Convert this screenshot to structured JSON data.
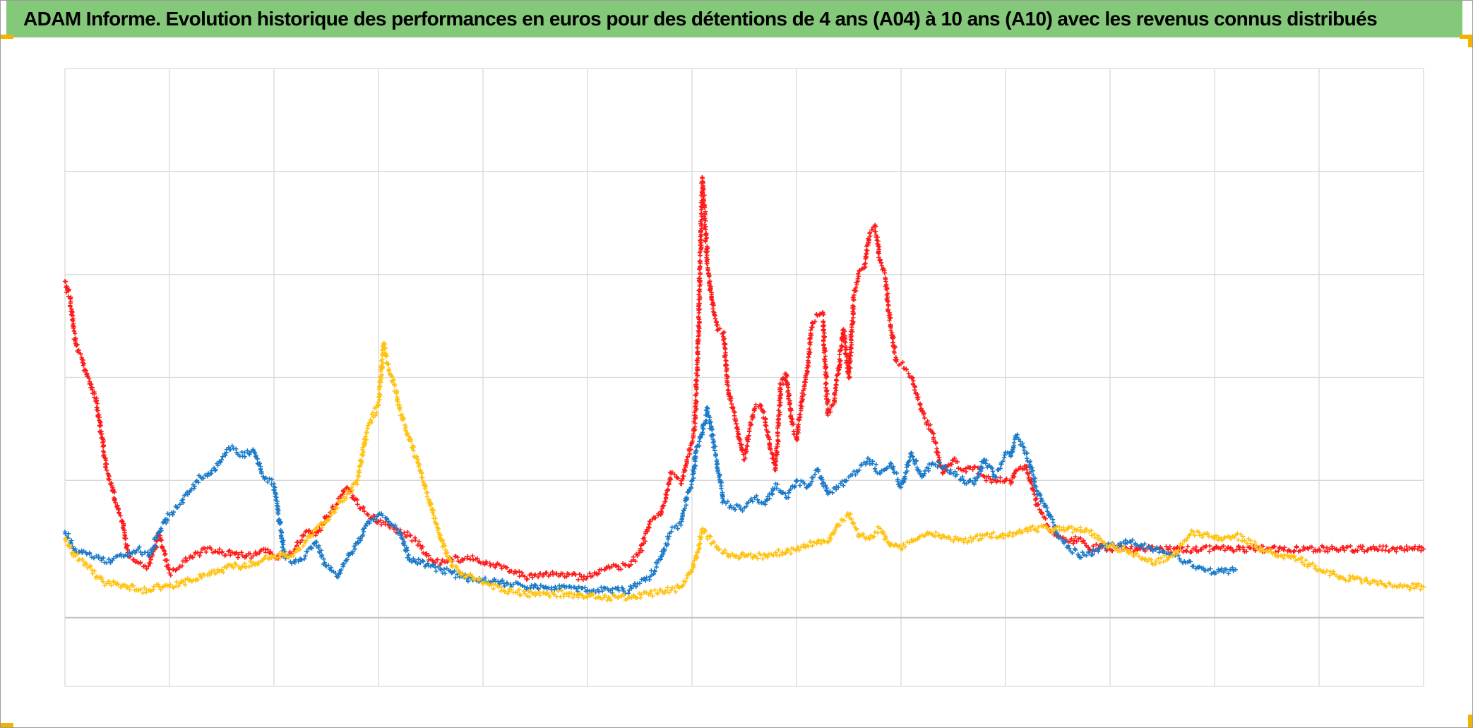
{
  "title": "ADAM Informe. Evolution historique des performances en euros pour des détentions de 4 ans (A04) à 10 ans (A10) avec les revenus connus distribués",
  "colors": {
    "title_bar": "#84c97a",
    "corner_marks": "#f2b400",
    "grid": "#d9d9d9",
    "series_red": "#ff1a1a",
    "series_blue": "#1a7ac8",
    "series_yellow": "#ffc20e"
  },
  "chart_data": {
    "type": "scatter",
    "marker": "plus",
    "title": "ADAM Informe. Evolution historique des performances en euros pour des détentions de 4 ans (A04) à 10 ans (A10) avec les revenus connus distribués",
    "xlabel": "",
    "ylabel": "",
    "xlim": [
      0,
      13
    ],
    "ylim": [
      -2,
      16
    ],
    "xticks": [
      0,
      1,
      2,
      3,
      4,
      5,
      6,
      7,
      8,
      9,
      10,
      11,
      12,
      13
    ],
    "yticks": [
      -2,
      0,
      4,
      7,
      10,
      13,
      16
    ],
    "tick_labels_shown": false,
    "grid": true,
    "legend": "none",
    "series": [
      {
        "color": "#ff1a1a",
        "x": [
          0.0,
          0.05,
          0.1,
          0.2,
          0.3,
          0.4,
          0.5,
          0.55,
          0.6,
          0.7,
          0.8,
          0.9,
          1.0,
          1.1,
          1.2,
          1.3,
          1.4,
          1.5,
          1.6,
          1.7,
          1.8,
          1.9,
          2.0,
          2.1,
          2.2,
          2.3,
          2.4,
          2.5,
          2.6,
          2.7,
          2.8,
          2.9,
          3.0,
          3.1,
          3.2,
          3.3,
          3.4,
          3.5,
          3.6,
          3.7,
          3.8,
          3.9,
          4.0,
          4.2,
          4.4,
          4.6,
          4.8,
          5.0,
          5.2,
          5.4,
          5.5,
          5.6,
          5.7,
          5.75,
          5.8,
          5.85,
          5.9,
          5.95,
          6.0,
          6.03,
          6.06,
          6.1,
          6.15,
          6.2,
          6.25,
          6.3,
          6.35,
          6.4,
          6.45,
          6.5,
          6.55,
          6.6,
          6.65,
          6.7,
          6.75,
          6.8,
          6.85,
          6.9,
          6.95,
          7.0,
          7.05,
          7.1,
          7.15,
          7.2,
          7.25,
          7.3,
          7.35,
          7.4,
          7.45,
          7.5,
          7.55,
          7.6,
          7.65,
          7.7,
          7.75,
          7.8,
          7.85,
          7.9,
          7.95,
          8.0,
          8.1,
          8.2,
          8.3,
          8.4,
          8.5,
          8.6,
          8.7,
          8.8,
          8.9,
          9.0,
          9.05,
          9.1,
          9.2,
          9.3,
          9.4,
          9.5,
          9.6,
          9.7,
          9.8,
          9.9,
          10.0,
          10.5,
          11.0,
          11.5,
          12.0,
          12.5,
          13.0
        ],
        "y": [
          9.8,
          9.3,
          8.0,
          7.2,
          6.3,
          4.3,
          3.2,
          2.8,
          1.9,
          1.6,
          1.5,
          2.4,
          1.3,
          1.5,
          1.8,
          1.9,
          2.0,
          1.9,
          1.9,
          1.8,
          1.8,
          2.0,
          1.8,
          1.8,
          2.0,
          2.5,
          2.4,
          2.9,
          3.3,
          3.8,
          3.3,
          3.0,
          2.8,
          2.7,
          2.5,
          2.4,
          2.1,
          1.7,
          1.6,
          1.7,
          1.7,
          1.8,
          1.6,
          1.5,
          1.2,
          1.3,
          1.2,
          1.2,
          1.5,
          1.5,
          1.9,
          2.8,
          3.0,
          3.5,
          4.2,
          4.1,
          3.9,
          4.6,
          5.1,
          5.8,
          8.2,
          12.8,
          10.2,
          9.0,
          8.4,
          8.3,
          6.5,
          6.0,
          5.2,
          4.6,
          5.5,
          6.1,
          6.2,
          5.8,
          4.9,
          4.3,
          6.8,
          7.1,
          5.8,
          5.2,
          6.3,
          7.1,
          8.6,
          8.8,
          8.9,
          5.9,
          6.2,
          7.2,
          8.4,
          7.0,
          9.4,
          10.1,
          10.2,
          11.2,
          11.4,
          10.4,
          9.9,
          8.5,
          7.5,
          7.4,
          7.0,
          6.0,
          5.4,
          4.2,
          4.6,
          4.3,
          4.4,
          4.1,
          4.0,
          4.0,
          3.9,
          4.3,
          4.4,
          3.3,
          2.7,
          2.4,
          2.2,
          2.3,
          2.0,
          2.1,
          2.0,
          2.0,
          2.0,
          2.0,
          2.0,
          2.0,
          2.0
        ]
      },
      {
        "color": "#1a7ac8",
        "x": [
          0.0,
          0.1,
          0.2,
          0.3,
          0.4,
          0.5,
          0.6,
          0.7,
          0.8,
          0.9,
          1.0,
          1.1,
          1.2,
          1.3,
          1.4,
          1.5,
          1.6,
          1.7,
          1.8,
          1.9,
          2.0,
          2.1,
          2.2,
          2.3,
          2.4,
          2.5,
          2.6,
          2.7,
          2.8,
          2.9,
          3.0,
          3.1,
          3.2,
          3.3,
          3.4,
          3.5,
          3.6,
          3.7,
          3.8,
          3.9,
          4.0,
          4.2,
          4.4,
          4.6,
          4.8,
          5.0,
          5.2,
          5.4,
          5.5,
          5.6,
          5.7,
          5.8,
          5.9,
          5.95,
          6.0,
          6.05,
          6.1,
          6.15,
          6.2,
          6.3,
          6.4,
          6.5,
          6.6,
          6.7,
          6.8,
          6.9,
          7.0,
          7.1,
          7.2,
          7.3,
          7.4,
          7.5,
          7.6,
          7.7,
          7.8,
          7.9,
          8.0,
          8.1,
          8.2,
          8.3,
          8.4,
          8.5,
          8.6,
          8.7,
          8.8,
          8.9,
          9.0,
          9.05,
          9.1,
          9.2,
          9.3,
          9.4,
          9.5,
          9.6,
          9.7,
          9.8,
          9.9,
          10.0,
          10.2,
          10.4,
          10.6,
          10.8,
          11.0,
          11.2
        ],
        "y": [
          2.5,
          2.0,
          1.9,
          1.8,
          1.6,
          1.8,
          1.8,
          2.0,
          1.8,
          2.5,
          3.0,
          3.3,
          3.7,
          4.1,
          4.2,
          4.6,
          5.0,
          4.7,
          4.9,
          4.1,
          3.9,
          1.8,
          1.6,
          1.8,
          2.2,
          1.5,
          1.2,
          1.7,
          2.2,
          2.8,
          3.0,
          2.8,
          2.5,
          1.7,
          1.6,
          1.5,
          1.4,
          1.3,
          1.2,
          1.1,
          1.1,
          1.0,
          0.9,
          0.9,
          0.9,
          0.8,
          0.8,
          0.8,
          1.0,
          1.2,
          1.7,
          2.5,
          2.8,
          3.5,
          4.0,
          5.0,
          5.4,
          6.1,
          5.2,
          3.4,
          3.2,
          3.2,
          3.5,
          3.3,
          3.9,
          3.5,
          4.0,
          3.8,
          4.3,
          3.6,
          3.8,
          4.1,
          4.3,
          4.6,
          4.2,
          4.5,
          3.8,
          4.8,
          4.1,
          4.5,
          4.4,
          4.2,
          4.0,
          3.9,
          4.6,
          4.1,
          4.8,
          4.7,
          5.3,
          4.8,
          3.7,
          3.1,
          2.4,
          2.1,
          1.8,
          1.9,
          2.0,
          2.1,
          2.2,
          2.0,
          1.8,
          1.5,
          1.3,
          1.4
        ]
      },
      {
        "color": "#ffc20e",
        "x": [
          0.0,
          0.1,
          0.2,
          0.3,
          0.4,
          0.5,
          0.6,
          0.7,
          0.8,
          0.9,
          1.0,
          1.1,
          1.2,
          1.3,
          1.4,
          1.5,
          1.6,
          1.7,
          1.8,
          1.9,
          2.0,
          2.1,
          2.2,
          2.3,
          2.4,
          2.5,
          2.6,
          2.7,
          2.8,
          2.9,
          3.0,
          3.05,
          3.1,
          3.15,
          3.2,
          3.3,
          3.4,
          3.5,
          3.6,
          3.7,
          3.8,
          3.9,
          4.0,
          4.2,
          4.4,
          4.6,
          4.8,
          5.0,
          5.2,
          5.4,
          5.6,
          5.8,
          5.9,
          6.0,
          6.05,
          6.1,
          6.2,
          6.3,
          6.4,
          6.5,
          6.6,
          6.7,
          6.8,
          6.9,
          7.0,
          7.1,
          7.2,
          7.3,
          7.4,
          7.5,
          7.6,
          7.7,
          7.8,
          7.9,
          8.0,
          8.2,
          8.4,
          8.6,
          8.8,
          9.0,
          9.2,
          9.4,
          9.6,
          9.8,
          10.0,
          10.2,
          10.4,
          10.6,
          10.8,
          11.0,
          11.2,
          11.4,
          11.6,
          11.8,
          12.0,
          12.2,
          12.4,
          12.6,
          12.8,
          13.0
        ],
        "y": [
          2.3,
          1.8,
          1.6,
          1.2,
          1.0,
          1.0,
          0.9,
          0.8,
          0.8,
          0.9,
          0.9,
          1.0,
          1.1,
          1.2,
          1.3,
          1.4,
          1.5,
          1.5,
          1.6,
          1.7,
          1.8,
          1.8,
          1.9,
          2.2,
          2.6,
          2.8,
          3.2,
          3.6,
          4.0,
          5.6,
          6.2,
          8.0,
          7.2,
          6.8,
          6.1,
          5.2,
          4.3,
          3.3,
          2.3,
          1.5,
          1.3,
          1.2,
          1.0,
          0.8,
          0.7,
          0.7,
          0.7,
          0.6,
          0.6,
          0.6,
          0.7,
          0.8,
          0.9,
          1.4,
          1.9,
          2.6,
          2.2,
          1.9,
          1.8,
          1.8,
          1.8,
          1.8,
          1.9,
          1.9,
          2.0,
          2.1,
          2.2,
          2.2,
          2.7,
          3.0,
          2.4,
          2.3,
          2.6,
          2.1,
          2.0,
          2.4,
          2.4,
          2.2,
          2.4,
          2.4,
          2.6,
          2.6,
          2.6,
          2.5,
          2.1,
          1.9,
          1.6,
          1.8,
          2.5,
          2.3,
          2.4,
          2.1,
          1.8,
          1.7,
          1.4,
          1.2,
          1.1,
          1.0,
          0.9,
          0.9
        ]
      }
    ]
  }
}
